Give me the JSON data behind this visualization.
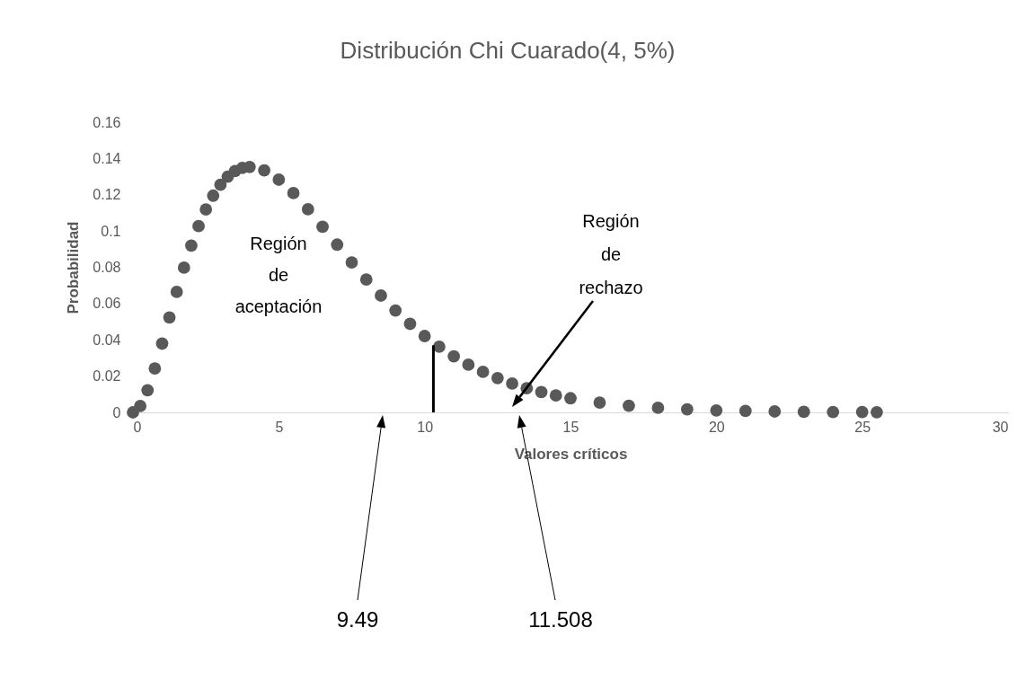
{
  "chart_data": {
    "type": "scatter",
    "title": "Distribución Chi Cuarado(4, 5%)",
    "xlabel": "Valores críticos",
    "ylabel": "Probabilidad",
    "series": [
      {
        "color": "#595959",
        "marker": "circle",
        "x": [
          0,
          0.25,
          0.5,
          0.75,
          1,
          1.25,
          1.5,
          1.75,
          2,
          2.25,
          2.5,
          2.75,
          3,
          3.25,
          3.5,
          3.75,
          4,
          4.5,
          5,
          5.5,
          6,
          6.5,
          7,
          7.5,
          8,
          8.5,
          9,
          9.5,
          10,
          10.5,
          11,
          11.5,
          12,
          12.5,
          13,
          13.5,
          14,
          14.5,
          15,
          16,
          17,
          18,
          19,
          20,
          21,
          22,
          23,
          24,
          25,
          25.5
        ],
        "values": [
          0,
          0.0035,
          0.0122,
          0.0242,
          0.0379,
          0.0523,
          0.0664,
          0.0798,
          0.092,
          0.1027,
          0.1119,
          0.1195,
          0.1255,
          0.13,
          0.1331,
          0.1348,
          0.1353,
          0.1334,
          0.1283,
          0.1209,
          0.112,
          0.1024,
          0.0925,
          0.0827,
          0.0733,
          0.0644,
          0.0562,
          0.0488,
          0.0421,
          0.0362,
          0.0309,
          0.0263,
          0.0223,
          0.0189,
          0.0159,
          0.0133,
          0.0112,
          0.0093,
          0.0078,
          0.0054,
          0.0037,
          0.0025,
          0.0017,
          0.0011,
          0.0008,
          0.0005,
          0.0003,
          0.0002,
          0.0002,
          0.0001
        ]
      },
      {
        "type": "line",
        "color": "#000000",
        "x": [
          10.3,
          10.3
        ],
        "values": [
          0,
          0.037
        ]
      }
    ],
    "xlim": [
      0,
      30
    ],
    "xticks": [
      0,
      5,
      10,
      15,
      20,
      25,
      30
    ],
    "ylim": [
      0,
      0.16
    ],
    "yticks": [
      0,
      0.02,
      0.04,
      0.06,
      0.08,
      0.1,
      0.12,
      0.14,
      0.16
    ],
    "grid": false,
    "annotations": [
      "Región de aceptación",
      "Región de rechazo",
      "9.49",
      "11.508"
    ]
  }
}
